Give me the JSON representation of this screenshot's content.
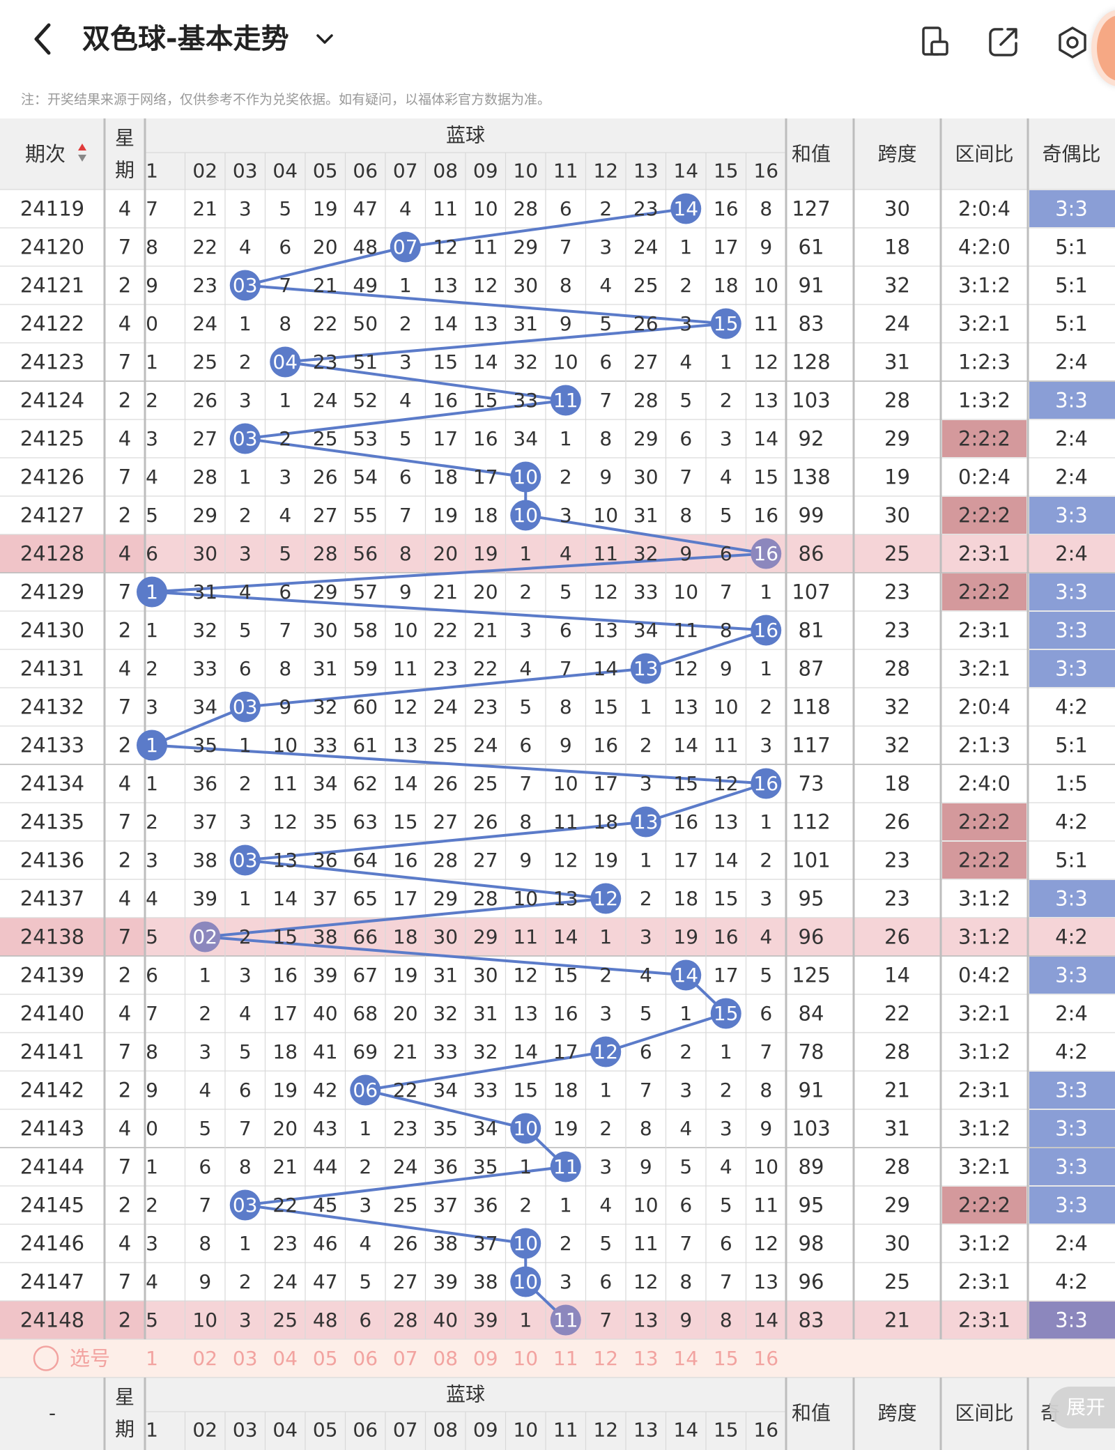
{
  "header": {
    "title": "双色球-基本走势",
    "notice": "注：开奖结果来源于网络，仅供参考不作为兑奖依据。如有疑问，以福体彩官方数据为准。"
  },
  "table": {
    "col_period": "期次",
    "col_week_top": "星",
    "col_week_bottom": "期",
    "blue_group": "蓝球",
    "blue_numbers": [
      "1",
      "02",
      "03",
      "04",
      "05",
      "06",
      "07",
      "08",
      "09",
      "10",
      "11",
      "12",
      "13",
      "14",
      "15",
      "16"
    ],
    "col_sum": "和值",
    "col_span": "跨度",
    "col_zone": "区间比",
    "col_oddeven": "奇偶比",
    "rows": [
      {
        "period": "24119",
        "week": "4",
        "misses": [
          "7",
          "21",
          "3",
          "5",
          "19",
          "47",
          "4",
          "11",
          "10",
          "28",
          "6",
          "2",
          "23",
          "14",
          "16",
          "8"
        ],
        "hit": 14,
        "sum": "127",
        "span": "30",
        "zone": "2:0:4",
        "oddeven": "3:3",
        "zone_hl": false,
        "oe_hl": true,
        "row_hl": false
      },
      {
        "period": "24120",
        "week": "7",
        "misses": [
          "8",
          "22",
          "4",
          "6",
          "20",
          "48",
          "07",
          "12",
          "11",
          "29",
          "7",
          "3",
          "24",
          "1",
          "17",
          "9"
        ],
        "hit": 7,
        "sum": "61",
        "span": "18",
        "zone": "4:2:0",
        "oddeven": "5:1",
        "zone_hl": false,
        "oe_hl": false,
        "row_hl": false
      },
      {
        "period": "24121",
        "week": "2",
        "misses": [
          "9",
          "23",
          "03",
          "7",
          "21",
          "49",
          "1",
          "13",
          "12",
          "30",
          "8",
          "4",
          "25",
          "2",
          "18",
          "10"
        ],
        "hit": 3,
        "sum": "91",
        "span": "32",
        "zone": "3:1:2",
        "oddeven": "5:1",
        "zone_hl": false,
        "oe_hl": false,
        "row_hl": false
      },
      {
        "period": "24122",
        "week": "4",
        "misses": [
          "0",
          "24",
          "1",
          "8",
          "22",
          "50",
          "2",
          "14",
          "13",
          "31",
          "9",
          "5",
          "26",
          "3",
          "15",
          "11"
        ],
        "hit": 15,
        "sum": "83",
        "span": "24",
        "zone": "3:2:1",
        "oddeven": "5:1",
        "zone_hl": false,
        "oe_hl": false,
        "row_hl": false
      },
      {
        "period": "24123",
        "week": "7",
        "misses": [
          "1",
          "25",
          "2",
          "04",
          "23",
          "51",
          "3",
          "15",
          "14",
          "32",
          "10",
          "6",
          "27",
          "4",
          "1",
          "12"
        ],
        "hit": 4,
        "sum": "128",
        "span": "31",
        "zone": "1:2:3",
        "oddeven": "2:4",
        "zone_hl": false,
        "oe_hl": false,
        "row_hl": false
      },
      {
        "period": "24124",
        "week": "2",
        "misses": [
          "2",
          "26",
          "3",
          "1",
          "24",
          "52",
          "4",
          "16",
          "15",
          "33",
          "11",
          "7",
          "28",
          "5",
          "2",
          "13"
        ],
        "hit": 11,
        "sum": "103",
        "span": "28",
        "zone": "1:3:2",
        "oddeven": "3:3",
        "zone_hl": false,
        "oe_hl": true,
        "row_hl": false
      },
      {
        "period": "24125",
        "week": "4",
        "misses": [
          "3",
          "27",
          "03",
          "2",
          "25",
          "53",
          "5",
          "17",
          "16",
          "34",
          "1",
          "8",
          "29",
          "6",
          "3",
          "14"
        ],
        "hit": 3,
        "sum": "92",
        "span": "29",
        "zone": "2:2:2",
        "oddeven": "2:4",
        "zone_hl": true,
        "oe_hl": false,
        "row_hl": false
      },
      {
        "period": "24126",
        "week": "7",
        "misses": [
          "4",
          "28",
          "1",
          "3",
          "26",
          "54",
          "6",
          "18",
          "17",
          "10",
          "2",
          "9",
          "30",
          "7",
          "4",
          "15"
        ],
        "hit": 10,
        "sum": "138",
        "span": "19",
        "zone": "0:2:4",
        "oddeven": "2:4",
        "zone_hl": false,
        "oe_hl": false,
        "row_hl": false
      },
      {
        "period": "24127",
        "week": "2",
        "misses": [
          "5",
          "29",
          "2",
          "4",
          "27",
          "55",
          "7",
          "19",
          "18",
          "10",
          "3",
          "10",
          "31",
          "8",
          "5",
          "16"
        ],
        "hit": 10,
        "sum": "99",
        "span": "30",
        "zone": "2:2:2",
        "oddeven": "3:3",
        "zone_hl": true,
        "oe_hl": true,
        "row_hl": false
      },
      {
        "period": "24128",
        "week": "4",
        "misses": [
          "6",
          "30",
          "3",
          "5",
          "28",
          "56",
          "8",
          "20",
          "19",
          "1",
          "4",
          "11",
          "32",
          "9",
          "6",
          "16"
        ],
        "hit": 16,
        "sum": "86",
        "span": "25",
        "zone": "2:3:1",
        "oddeven": "2:4",
        "zone_hl": false,
        "oe_hl": false,
        "row_hl": true
      },
      {
        "period": "24129",
        "week": "7",
        "misses": [
          "1",
          "31",
          "4",
          "6",
          "29",
          "57",
          "9",
          "21",
          "20",
          "2",
          "5",
          "12",
          "33",
          "10",
          "7",
          "1"
        ],
        "hit": 1,
        "sum": "107",
        "span": "23",
        "zone": "2:2:2",
        "oddeven": "3:3",
        "zone_hl": true,
        "oe_hl": true,
        "row_hl": false
      },
      {
        "period": "24130",
        "week": "2",
        "misses": [
          "1",
          "32",
          "5",
          "7",
          "30",
          "58",
          "10",
          "22",
          "21",
          "3",
          "6",
          "13",
          "34",
          "11",
          "8",
          "16"
        ],
        "hit": 16,
        "sum": "81",
        "span": "23",
        "zone": "2:3:1",
        "oddeven": "3:3",
        "zone_hl": false,
        "oe_hl": true,
        "row_hl": false
      },
      {
        "period": "24131",
        "week": "4",
        "misses": [
          "2",
          "33",
          "6",
          "8",
          "31",
          "59",
          "11",
          "23",
          "22",
          "4",
          "7",
          "14",
          "13",
          "12",
          "9",
          "1"
        ],
        "hit": 13,
        "sum": "87",
        "span": "28",
        "zone": "3:2:1",
        "oddeven": "3:3",
        "zone_hl": false,
        "oe_hl": true,
        "row_hl": false
      },
      {
        "period": "24132",
        "week": "7",
        "misses": [
          "3",
          "34",
          "03",
          "9",
          "32",
          "60",
          "12",
          "24",
          "23",
          "5",
          "8",
          "15",
          "1",
          "13",
          "10",
          "2"
        ],
        "hit": 3,
        "sum": "118",
        "span": "32",
        "zone": "2:0:4",
        "oddeven": "4:2",
        "zone_hl": false,
        "oe_hl": false,
        "row_hl": false
      },
      {
        "period": "24133",
        "week": "2",
        "misses": [
          "1",
          "35",
          "1",
          "10",
          "33",
          "61",
          "13",
          "25",
          "24",
          "6",
          "9",
          "16",
          "2",
          "14",
          "11",
          "3"
        ],
        "hit": 1,
        "sum": "117",
        "span": "32",
        "zone": "2:1:3",
        "oddeven": "5:1",
        "zone_hl": false,
        "oe_hl": false,
        "row_hl": false
      },
      {
        "period": "24134",
        "week": "4",
        "misses": [
          "1",
          "36",
          "2",
          "11",
          "34",
          "62",
          "14",
          "26",
          "25",
          "7",
          "10",
          "17",
          "3",
          "15",
          "12",
          "16"
        ],
        "hit": 16,
        "sum": "73",
        "span": "18",
        "zone": "2:4:0",
        "oddeven": "1:5",
        "zone_hl": false,
        "oe_hl": false,
        "row_hl": false
      },
      {
        "period": "24135",
        "week": "7",
        "misses": [
          "2",
          "37",
          "3",
          "12",
          "35",
          "63",
          "15",
          "27",
          "26",
          "8",
          "11",
          "18",
          "13",
          "16",
          "13",
          "1"
        ],
        "hit": 13,
        "sum": "112",
        "span": "26",
        "zone": "2:2:2",
        "oddeven": "4:2",
        "zone_hl": true,
        "oe_hl": false,
        "row_hl": false
      },
      {
        "period": "24136",
        "week": "2",
        "misses": [
          "3",
          "38",
          "03",
          "13",
          "36",
          "64",
          "16",
          "28",
          "27",
          "9",
          "12",
          "19",
          "1",
          "17",
          "14",
          "2"
        ],
        "hit": 3,
        "sum": "101",
        "span": "23",
        "zone": "2:2:2",
        "oddeven": "5:1",
        "zone_hl": true,
        "oe_hl": false,
        "row_hl": false
      },
      {
        "period": "24137",
        "week": "4",
        "misses": [
          "4",
          "39",
          "1",
          "14",
          "37",
          "65",
          "17",
          "29",
          "28",
          "10",
          "13",
          "12",
          "2",
          "18",
          "15",
          "3"
        ],
        "hit": 12,
        "sum": "95",
        "span": "23",
        "zone": "3:1:2",
        "oddeven": "3:3",
        "zone_hl": false,
        "oe_hl": true,
        "row_hl": false
      },
      {
        "period": "24138",
        "week": "7",
        "misses": [
          "5",
          "02",
          "2",
          "15",
          "38",
          "66",
          "18",
          "30",
          "29",
          "11",
          "14",
          "1",
          "3",
          "19",
          "16",
          "4"
        ],
        "hit": 2,
        "sum": "96",
        "span": "26",
        "zone": "3:1:2",
        "oddeven": "4:2",
        "zone_hl": false,
        "oe_hl": false,
        "row_hl": true
      },
      {
        "period": "24139",
        "week": "2",
        "misses": [
          "6",
          "1",
          "3",
          "16",
          "39",
          "67",
          "19",
          "31",
          "30",
          "12",
          "15",
          "2",
          "4",
          "14",
          "17",
          "5"
        ],
        "hit": 14,
        "sum": "125",
        "span": "14",
        "zone": "0:4:2",
        "oddeven": "3:3",
        "zone_hl": false,
        "oe_hl": true,
        "row_hl": false
      },
      {
        "period": "24140",
        "week": "4",
        "misses": [
          "7",
          "2",
          "4",
          "17",
          "40",
          "68",
          "20",
          "32",
          "31",
          "13",
          "16",
          "3",
          "5",
          "1",
          "15",
          "6"
        ],
        "hit": 15,
        "sum": "84",
        "span": "22",
        "zone": "3:2:1",
        "oddeven": "2:4",
        "zone_hl": false,
        "oe_hl": false,
        "row_hl": false
      },
      {
        "period": "24141",
        "week": "7",
        "misses": [
          "8",
          "3",
          "5",
          "18",
          "41",
          "69",
          "21",
          "33",
          "32",
          "14",
          "17",
          "12",
          "6",
          "2",
          "1",
          "7"
        ],
        "hit": 12,
        "sum": "78",
        "span": "28",
        "zone": "3:1:2",
        "oddeven": "4:2",
        "zone_hl": false,
        "oe_hl": false,
        "row_hl": false
      },
      {
        "period": "24142",
        "week": "2",
        "misses": [
          "9",
          "4",
          "6",
          "19",
          "42",
          "06",
          "22",
          "34",
          "33",
          "15",
          "18",
          "1",
          "7",
          "3",
          "2",
          "8"
        ],
        "hit": 6,
        "sum": "91",
        "span": "21",
        "zone": "2:3:1",
        "oddeven": "3:3",
        "zone_hl": false,
        "oe_hl": true,
        "row_hl": false
      },
      {
        "period": "24143",
        "week": "4",
        "misses": [
          "0",
          "5",
          "7",
          "20",
          "43",
          "1",
          "23",
          "35",
          "34",
          "10",
          "19",
          "2",
          "8",
          "4",
          "3",
          "9"
        ],
        "hit": 10,
        "sum": "103",
        "span": "31",
        "zone": "3:1:2",
        "oddeven": "3:3",
        "zone_hl": false,
        "oe_hl": true,
        "row_hl": false
      },
      {
        "period": "24144",
        "week": "7",
        "misses": [
          "1",
          "6",
          "8",
          "21",
          "44",
          "2",
          "24",
          "36",
          "35",
          "1",
          "11",
          "3",
          "9",
          "5",
          "4",
          "10"
        ],
        "hit": 11,
        "sum": "89",
        "span": "28",
        "zone": "3:2:1",
        "oddeven": "3:3",
        "zone_hl": false,
        "oe_hl": true,
        "row_hl": false
      },
      {
        "period": "24145",
        "week": "2",
        "misses": [
          "2",
          "7",
          "03",
          "22",
          "45",
          "3",
          "25",
          "37",
          "36",
          "2",
          "1",
          "4",
          "10",
          "6",
          "5",
          "11"
        ],
        "hit": 3,
        "sum": "95",
        "span": "29",
        "zone": "2:2:2",
        "oddeven": "3:3",
        "zone_hl": true,
        "oe_hl": true,
        "row_hl": false
      },
      {
        "period": "24146",
        "week": "4",
        "misses": [
          "3",
          "8",
          "1",
          "23",
          "46",
          "4",
          "26",
          "38",
          "37",
          "10",
          "2",
          "5",
          "11",
          "7",
          "6",
          "12"
        ],
        "hit": 10,
        "sum": "98",
        "span": "30",
        "zone": "3:1:2",
        "oddeven": "2:4",
        "zone_hl": false,
        "oe_hl": false,
        "row_hl": false
      },
      {
        "period": "24147",
        "week": "7",
        "misses": [
          "4",
          "9",
          "2",
          "24",
          "47",
          "5",
          "27",
          "39",
          "38",
          "10",
          "3",
          "6",
          "12",
          "8",
          "7",
          "13"
        ],
        "hit": 10,
        "sum": "96",
        "span": "25",
        "zone": "2:3:1",
        "oddeven": "4:2",
        "zone_hl": false,
        "oe_hl": false,
        "row_hl": false
      },
      {
        "period": "24148",
        "week": "2",
        "misses": [
          "5",
          "10",
          "3",
          "25",
          "48",
          "6",
          "28",
          "40",
          "39",
          "1",
          "11",
          "7",
          "13",
          "9",
          "8",
          "14"
        ],
        "hit": 11,
        "sum": "83",
        "span": "21",
        "zone": "2:3:1",
        "oddeven": "3:3",
        "zone_hl": false,
        "oe_hl": true,
        "row_hl": true
      }
    ],
    "select_label": "选号",
    "footer_period": "-",
    "footer_oddeven_partial": "奇"
  },
  "expand_button": "展开",
  "colors": {
    "ball": "#5b7bc9",
    "ball_highlight": "#8c87bd",
    "line": "#5b7bc9",
    "oe_highlight": "#8a9ed6",
    "zone_highlight": "#d4999c",
    "row_highlight": "#f5d4d7",
    "select_row": "#fdeee8",
    "select_text": "#f2a3a0",
    "header_bg": "#f0f0f0"
  }
}
